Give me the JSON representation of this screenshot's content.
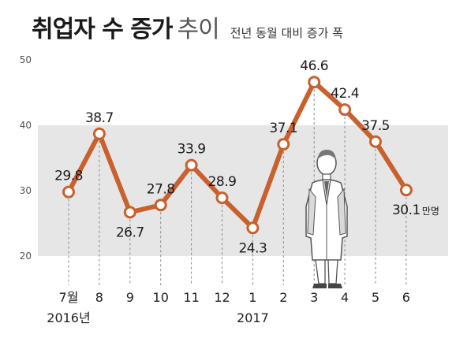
{
  "title": {
    "main": "취업자 수 증가",
    "light": "추이",
    "sub": "전년 동월 대비 증가 폭"
  },
  "colors": {
    "line": "#c8612e",
    "band": "#e6e6e6",
    "guide": "#8a8a8a",
    "person": "#555555"
  },
  "chart_data": {
    "type": "line",
    "title": "취업자 수 증가 추이",
    "subtitle": "전년 동월 대비 증가 폭",
    "categories": [
      "7월",
      "8",
      "9",
      "10",
      "11",
      "12",
      "1",
      "2",
      "3",
      "4",
      "5",
      "6"
    ],
    "year_labels": [
      "2016년",
      "2017"
    ],
    "values": [
      29.8,
      38.7,
      26.7,
      27.8,
      33.9,
      28.9,
      24.3,
      37.1,
      46.6,
      42.4,
      37.5,
      30.1
    ],
    "value_labels": [
      "29.8",
      "38.7",
      "26.7",
      "27.8",
      "33.9",
      "28.9",
      "24.3",
      "37.1",
      "46.6",
      "42.4",
      "37.5",
      "30.1"
    ],
    "unit": "만명",
    "yticks": [
      "20",
      "30",
      "40",
      "50"
    ],
    "ylim": [
      20,
      50
    ],
    "bands": [
      [
        30,
        40
      ],
      [
        20,
        30
      ]
    ],
    "grid": false,
    "legend": "none",
    "icon": "person-illustration"
  }
}
